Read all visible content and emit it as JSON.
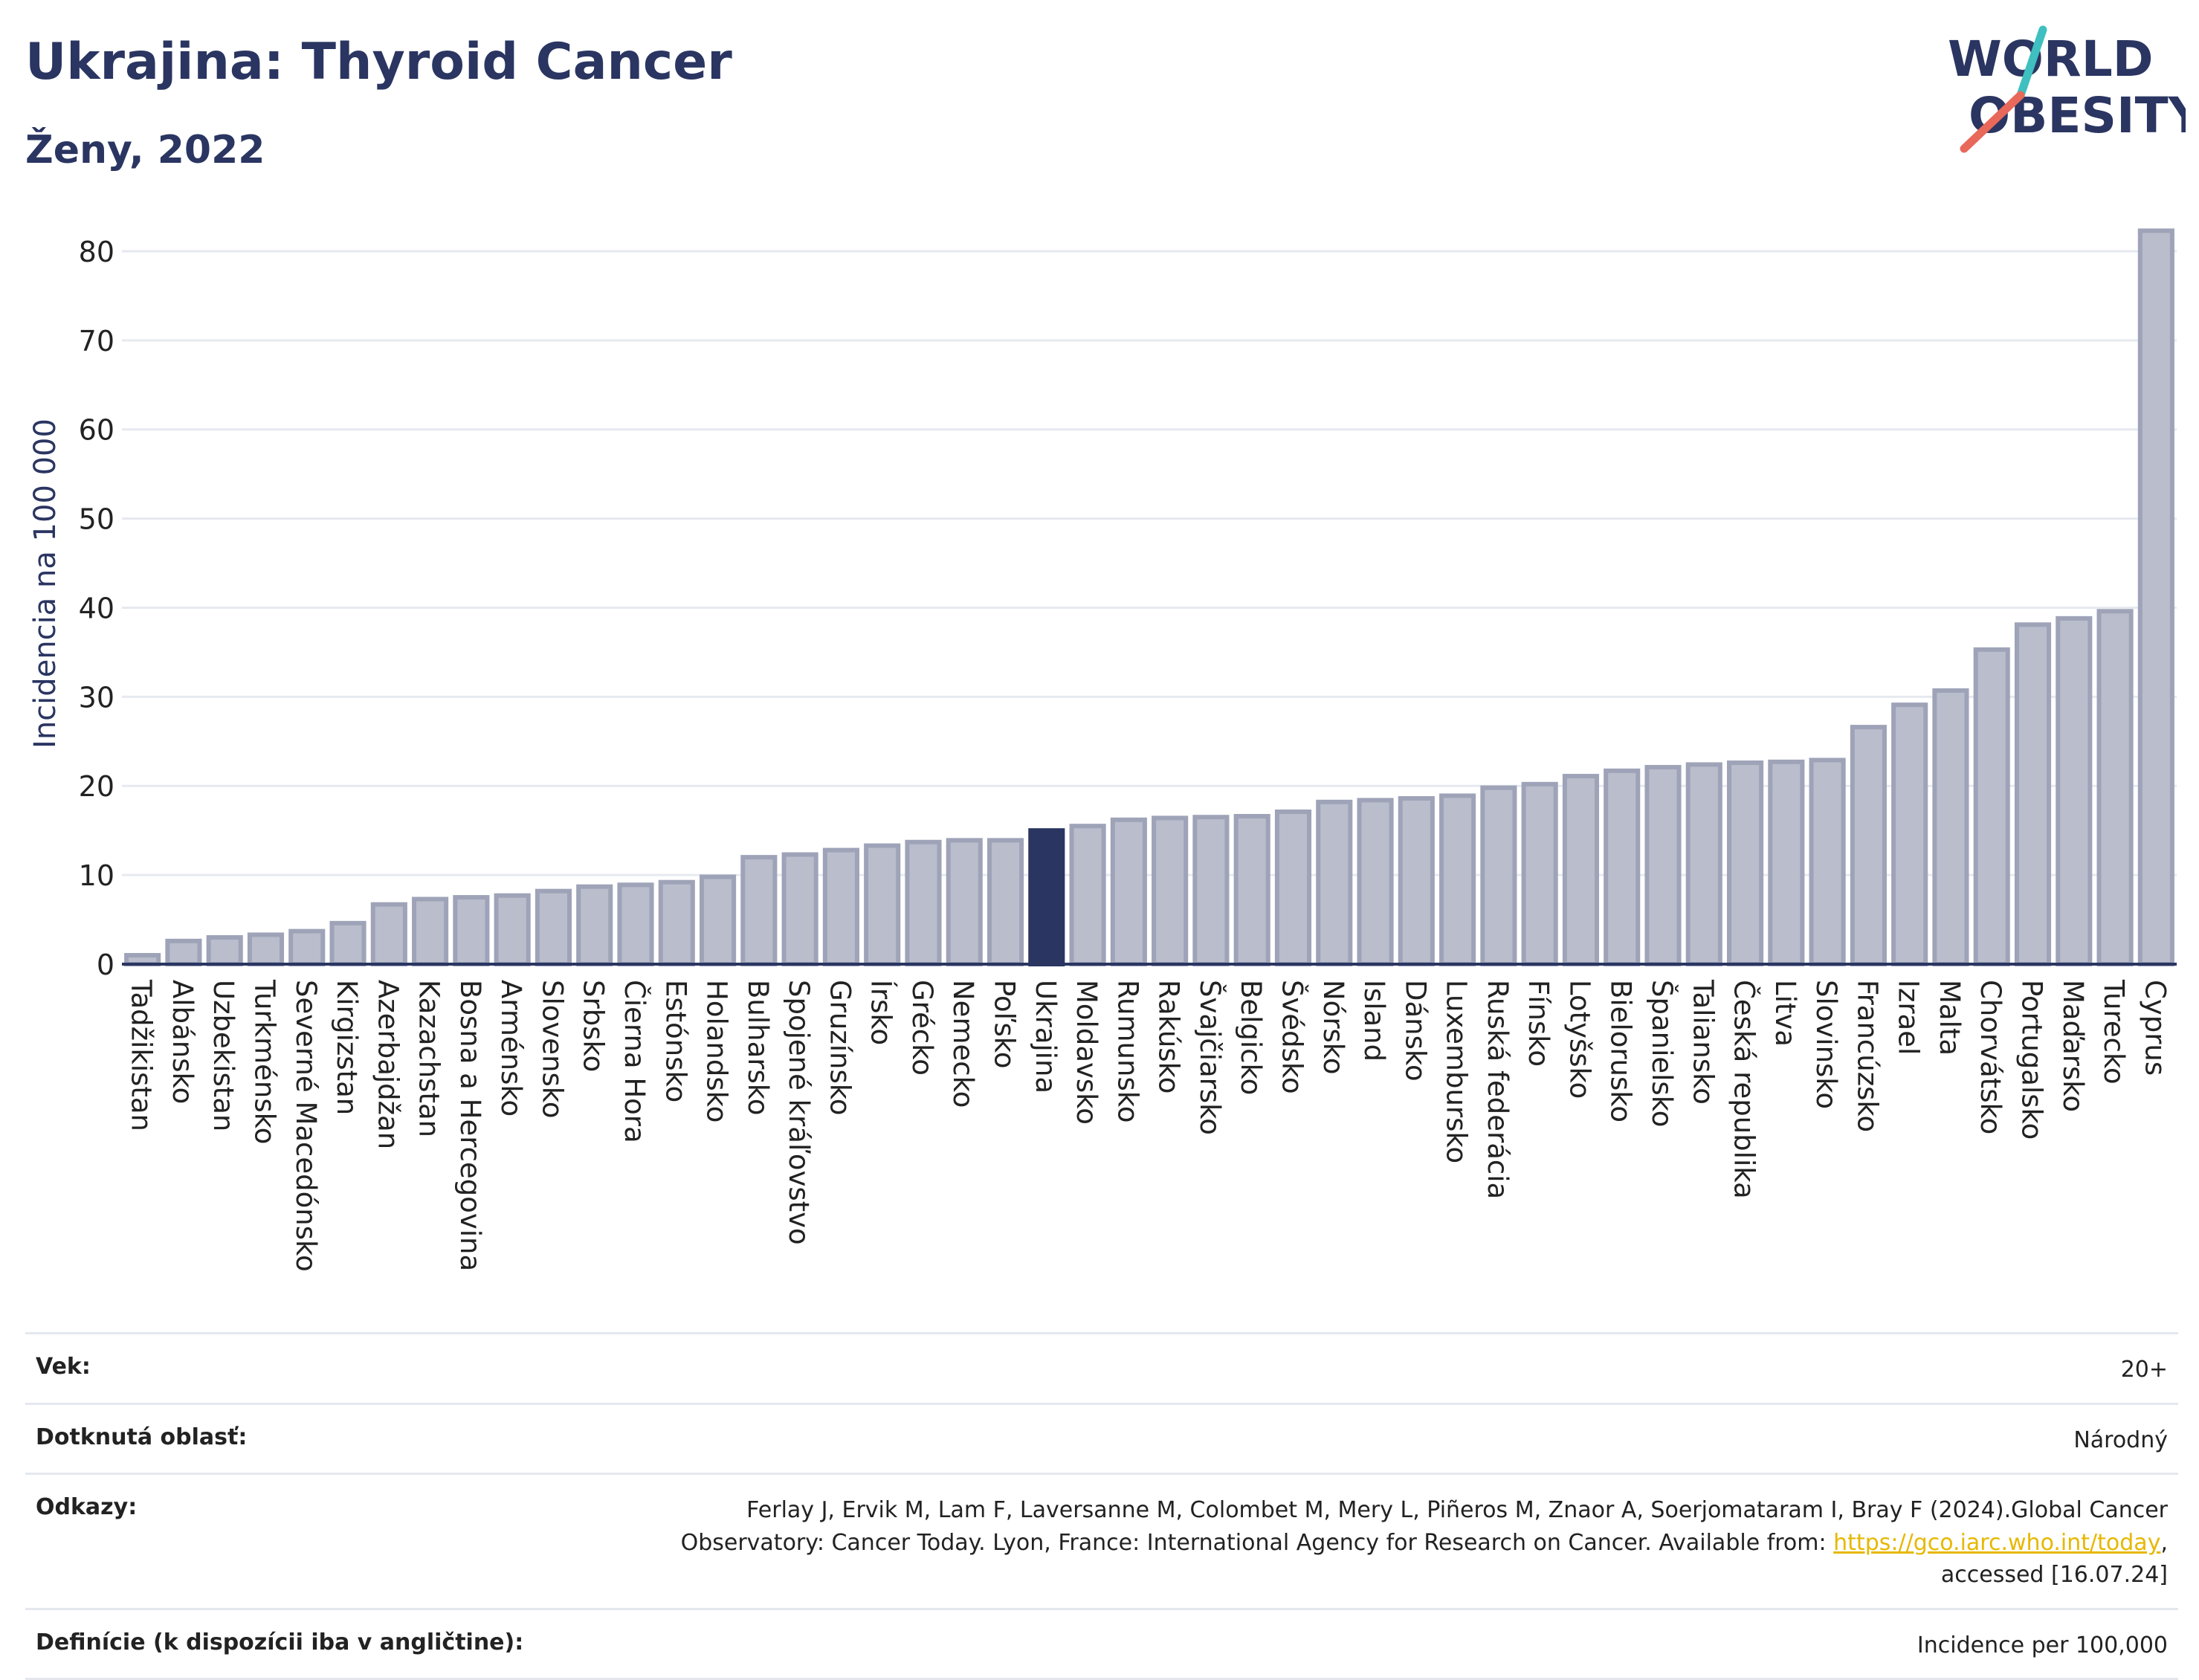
{
  "header": {
    "title": "Ukrajina: Thyroid Cancer",
    "subtitle": "Ženy, 2022"
  },
  "logo": {
    "line1": "WORLD",
    "line2": "OBESITY",
    "accent_colors": [
      "#3fbfbf",
      "#e8685a"
    ]
  },
  "colors": {
    "bar": "#b9bdcc",
    "bar_stroke": "#9ea3b8",
    "highlight": "#2a3561",
    "axis": "#2a3561",
    "grid": "#e6e9ef"
  },
  "chart_data": {
    "type": "bar",
    "ylabel": "Incidencia na 100 000",
    "ylim": [
      0,
      85
    ],
    "yticks": [
      0,
      10,
      20,
      30,
      40,
      50,
      60,
      70,
      80
    ],
    "grid": true,
    "highlight": "Ukrajina",
    "categories": [
      "Tadžikistan",
      "Albánsko",
      "Uzbekistan",
      "Turkménsko",
      "Severné Macedónsko",
      "Kirgizstan",
      "Azerbajdžan",
      "Kazachstan",
      "Bosna a Hercegovina",
      "Arménsko",
      "Slovensko",
      "Srbsko",
      "Čierna Hora",
      "Estónsko",
      "Holandsko",
      "Bulharsko",
      "Spojené kráľovstvo",
      "Gruzínsko",
      "Írsko",
      "Grécko",
      "Nemecko",
      "Poľsko",
      "Ukrajina",
      "Moldavsko",
      "Rumunsko",
      "Rakúsko",
      "Švajčiarsko",
      "Belgicko",
      "Švédsko",
      "Nórsko",
      "Island",
      "Dánsko",
      "Luxembursko",
      "Ruská federácia",
      "Fínsko",
      "Lotyšsko",
      "Bielorusko",
      "Španielsko",
      "Taliansko",
      "Česká republika",
      "Litva",
      "Slovinsko",
      "Francúzsko",
      "Izrael",
      "Malta",
      "Chorvátsko",
      "Portugalsko",
      "Maďarsko",
      "Turecko",
      "Cyprus"
    ],
    "values": [
      1.0,
      2.6,
      3.0,
      3.3,
      3.7,
      4.6,
      6.7,
      7.3,
      7.5,
      7.7,
      8.2,
      8.7,
      8.9,
      9.2,
      9.8,
      12.0,
      12.3,
      12.8,
      13.3,
      13.7,
      13.9,
      13.9,
      15.0,
      15.5,
      16.2,
      16.4,
      16.5,
      16.6,
      17.1,
      18.2,
      18.4,
      18.6,
      18.9,
      19.8,
      20.2,
      21.1,
      21.7,
      22.1,
      22.4,
      22.6,
      22.7,
      22.9,
      26.6,
      29.1,
      30.7,
      35.3,
      38.1,
      38.8,
      39.6,
      82.3
    ]
  },
  "meta": {
    "age_label": "Vek:",
    "age_value": "20+",
    "area_label": "Dotknutá oblasť:",
    "area_value": "Národný",
    "refs_label": "Odkazy:",
    "refs_text_1": "Ferlay J, Ervik M, Lam F, Laversanne M, Colombet M, Mery L, Piñeros M, Znaor A, Soerjomataram I, Bray F (2024).Global Cancer Observatory: Cancer Today. Lyon, France: International Agency for Research on Cancer. Available from: ",
    "refs_link": "https://gco.iarc.who.int/today",
    "refs_text_2": ", accessed [16.07.24]",
    "def_label": "Definície (k dispozícii iba v angličtine):",
    "def_value": "Incidence per 100,000"
  }
}
